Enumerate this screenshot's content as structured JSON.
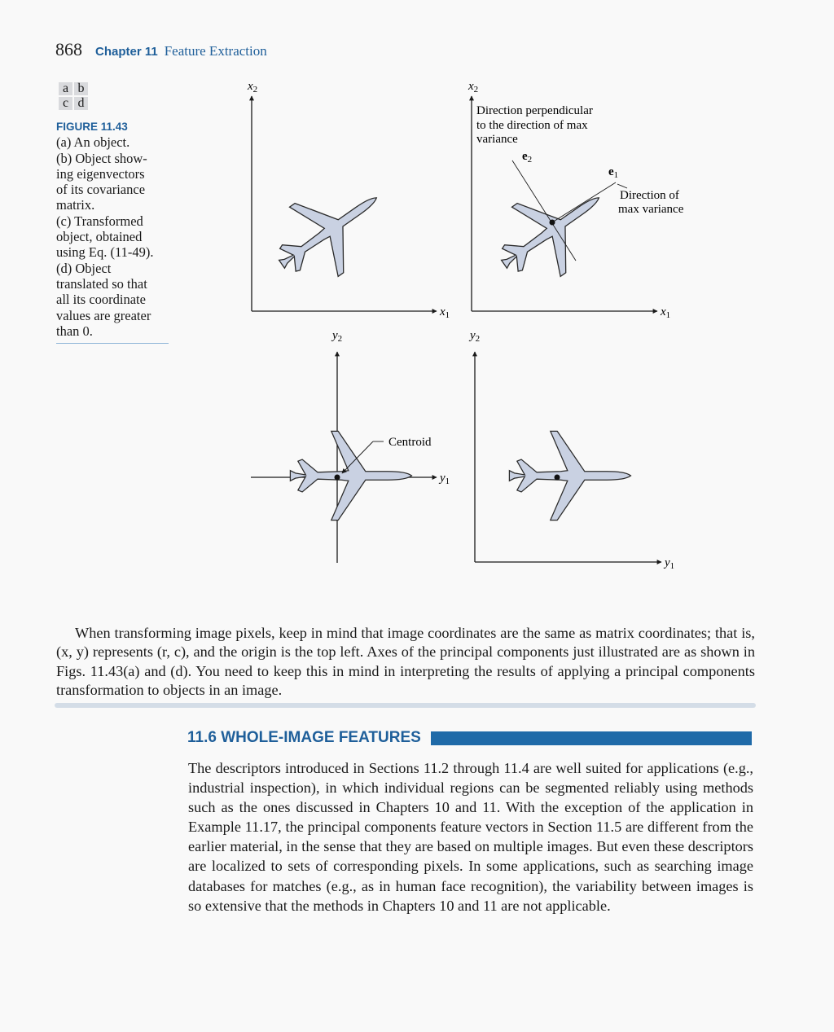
{
  "header": {
    "page_number": "868",
    "chapter_label": "Chapter 11",
    "chapter_title": "Feature Extraction"
  },
  "panel_key": {
    "a": "a",
    "b": "b",
    "c": "c",
    "d": "d"
  },
  "figure": {
    "label": "FIGURE 11.43",
    "caption": "(a) An object.\n(b) Object show-\ning eigenvectors\nof its covariance\nmatrix.\n(c) Transformed\nobject, obtained\nusing Eq. (11-49).\n(d) Object\ntranslated so that\nall its coordinate\nvalues are greater\nthan 0.",
    "panel_a": {
      "x_axis": "x",
      "x_sub": "1",
      "y_axis": "x",
      "y_sub": "2"
    },
    "panel_b": {
      "x_axis": "x",
      "x_sub": "1",
      "y_axis": "x",
      "y_sub": "2",
      "annotation_perp": [
        "Direction perpendicular",
        "to the direction of max",
        "variance"
      ],
      "e2_label": "e",
      "e2_sub": "2",
      "e1_label": "e",
      "e1_sub": "1",
      "annotation_max": [
        "Direction of",
        "max variance"
      ]
    },
    "panel_c": {
      "x_axis": "y",
      "x_sub": "1",
      "y_axis": "y",
      "y_sub": "2",
      "centroid_label": "Centroid"
    },
    "panel_d": {
      "x_axis": "y",
      "x_sub": "1",
      "y_axis": "y",
      "y_sub": "2"
    },
    "colors": {
      "object_fill": "#c9d1e2",
      "object_stroke": "#2a2a2a"
    }
  },
  "para1": "When transforming image pixels, keep in mind that image coordinates are the same as matrix coordinates; that is, (x, y) represents (r, c), and the origin is the top left. Axes of the principal components just illustrated are as shown in Figs. 11.43(a) and (d). You need to keep this in mind in interpreting the results of applying a principal components transformation to objects in an image.",
  "section": {
    "number": "11.6",
    "title": "WHOLE-IMAGE FEATURES"
  },
  "para2": "The descriptors introduced in Sections 11.2 through 11.4 are well suited for applications (e.g., industrial inspection), in which individual regions can be segmented reliably using methods such as the ones discussed in Chapters 10 and 11. With the exception of the application in Example 11.17, the principal components feature vectors in Section 11.5 are different from the earlier material, in the sense that they are based on multiple images. But even these descriptors are localized to sets of corresponding pixels. In some applications, such as searching image databases for matches (e.g., as in human face recognition), the variability between images is so extensive that the methods in Chapters 10 and 11 are not applicable."
}
